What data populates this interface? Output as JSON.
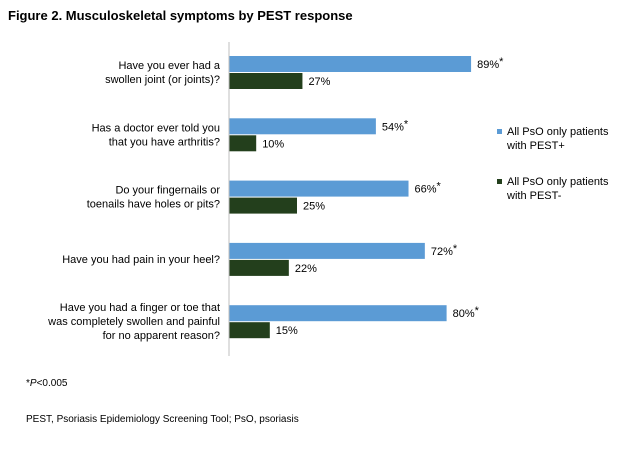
{
  "title": "Figure 2. Musculoskeletal symptoms by PEST response",
  "chart_data": {
    "type": "bar",
    "orientation": "horizontal",
    "categories": [
      [
        "Have you ever had a",
        "swollen joint (or joints)?"
      ],
      [
        "Has a doctor ever told you",
        "that you have arthritis?"
      ],
      [
        "Do your fingernails or",
        "toenails have holes or pits?"
      ],
      [
        "Have you had pain in your heel?"
      ],
      [
        "Have you had a finger or toe that",
        "was completely swollen and painful",
        "for no apparent reason?"
      ]
    ],
    "series": [
      {
        "name": "All PsO only patients with PEST+",
        "legend_lines": [
          "All PsO only patients",
          "with PEST+"
        ],
        "color": "#5b9bd5",
        "values": [
          89,
          54,
          66,
          72,
          80
        ],
        "labels": [
          "89%",
          "54%",
          "66%",
          "72%",
          "80%"
        ],
        "marks": [
          "*",
          "*",
          "*",
          "*",
          "*"
        ]
      },
      {
        "name": "All PsO only patients with PEST-",
        "legend_lines": [
          "All PsO only patients",
          "with PEST-"
        ],
        "color": "#233f1c",
        "values": [
          27,
          10,
          25,
          22,
          15
        ],
        "labels": [
          "27%",
          "10%",
          "25%",
          "22%",
          "15%"
        ],
        "marks": [
          "",
          "",
          "",
          "",
          ""
        ]
      }
    ],
    "xlim": [
      0,
      100
    ],
    "grid": false,
    "legend_position": "right"
  },
  "footnotes": {
    "pvalue_prefix": "*",
    "pvalue_var": "P",
    "pvalue_rest": "<0.005",
    "abbreviations": "PEST, Psoriasis Epidemiology Screening Tool; PsO, psoriasis"
  }
}
